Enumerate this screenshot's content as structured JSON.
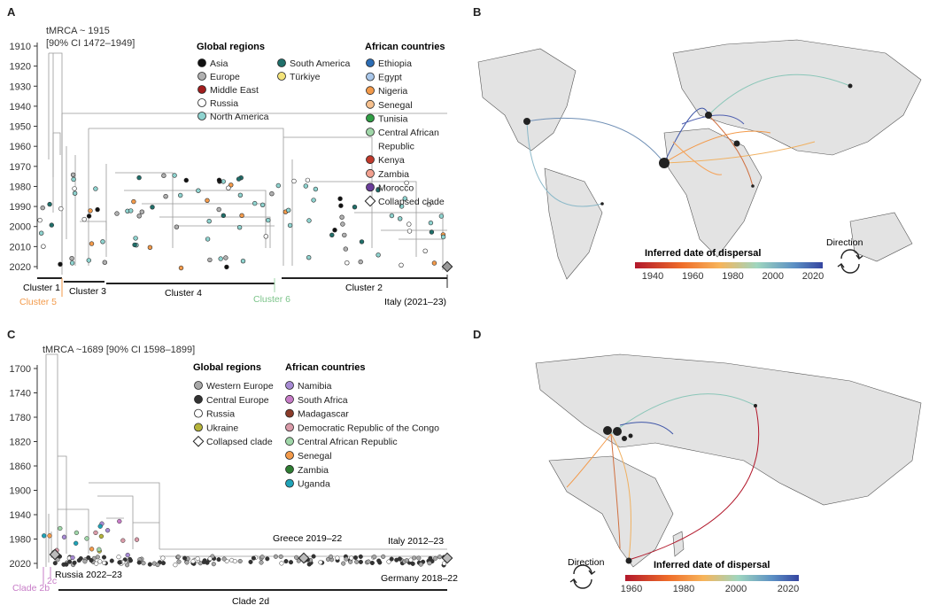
{
  "panels": {
    "a": {
      "letter": "A",
      "tmrca_line1": "tMRCA ~ 1915",
      "tmrca_line2": "[90% CI 1472–1949]",
      "years": [
        "1910",
        "1920",
        "1930",
        "1940",
        "1950",
        "1960",
        "1970",
        "1980",
        "1990",
        "2000",
        "2010",
        "2020"
      ],
      "legend_global_title": "Global regions",
      "legend_global": [
        {
          "label": "Asia",
          "color": "#111111"
        },
        {
          "label": "Europe",
          "color": "#b0b0b0"
        },
        {
          "label": "Middle East",
          "color": "#a11d1d"
        },
        {
          "label": "Russia",
          "color": "#ffffff"
        },
        {
          "label": "North America",
          "color": "#8ed3cf"
        },
        {
          "label": "South America",
          "color": "#1f6f6a"
        },
        {
          "label": "Türkiye",
          "color": "#f3e37a"
        }
      ],
      "legend_african_title": "African countries",
      "legend_african": [
        {
          "label": "Ethiopia",
          "color": "#2c6db4"
        },
        {
          "label": "Egypt",
          "color": "#a9c7ea"
        },
        {
          "label": "Nigeria",
          "color": "#f39a4a"
        },
        {
          "label": "Senegal",
          "color": "#f6c08e"
        },
        {
          "label": "Tunisia",
          "color": "#2f9e44"
        },
        {
          "label": "Central African",
          "color": "#9fd6a8"
        },
        {
          "label": "Republic",
          "color": "none"
        },
        {
          "label": "Kenya",
          "color": "#c0392b"
        },
        {
          "label": "Zambia",
          "color": "#f1a08f"
        },
        {
          "label": "Morocco",
          "color": "#6a3d9a"
        },
        {
          "label": "Collapsed clade",
          "color": "diamond"
        }
      ],
      "clusters": {
        "c1": "Cluster 1",
        "c3": "Cluster 3",
        "c4": "Cluster 4",
        "c2": "Cluster 2",
        "c5": "Cluster 5",
        "c6": "Cluster 6"
      },
      "italy": "Italy (2021–23)"
    },
    "b": {
      "letter": "B",
      "colorbar_title": "Inferred date of dispersal",
      "ticks": [
        "1940",
        "1960",
        "1980",
        "2000",
        "2020"
      ],
      "direction": "Direction"
    },
    "c": {
      "letter": "C",
      "tmrca": "tMRCA ~1689 [90% CI 1598–1899]",
      "years": [
        "1700",
        "1740",
        "1780",
        "1820",
        "1860",
        "1900",
        "1940",
        "1980",
        "2020"
      ],
      "legend_global_title": "Global regions",
      "legend_global": [
        {
          "label": "Western Europe",
          "color": "#a8a8a8"
        },
        {
          "label": "Central Europe",
          "color": "#333333"
        },
        {
          "label": "Russia",
          "color": "#ffffff"
        },
        {
          "label": "Ukraine",
          "color": "#b5b33a"
        },
        {
          "label": "Collapsed clade",
          "color": "diamond"
        }
      ],
      "legend_african_title": "African countries",
      "legend_african": [
        {
          "label": "Namibia",
          "color": "#a78bd4"
        },
        {
          "label": "South Africa",
          "color": "#c77cc7"
        },
        {
          "label": "Madagascar",
          "color": "#8a3b2a"
        },
        {
          "label": "Democratic Republic of the Congo",
          "color": "#d99aa8"
        },
        {
          "label": "Central African Republic",
          "color": "#9fd6a8"
        },
        {
          "label": "Senegal",
          "color": "#f39a4a"
        },
        {
          "label": "Zambia",
          "color": "#2e7d32"
        },
        {
          "label": "Uganda",
          "color": "#1fa3b8"
        }
      ],
      "greece": "Greece 2019–22",
      "italy": "Italy 2012–23",
      "russia": "Russia 2022–23",
      "germany": "Germany 2018–22",
      "clade2b": "Clade 2b",
      "clade2c": "2c",
      "clade2d": "Clade 2d"
    },
    "d": {
      "letter": "D",
      "colorbar_title": "Inferred date of dispersal",
      "ticks": [
        "1960",
        "1980",
        "2000",
        "2020"
      ],
      "direction": "Direction"
    }
  }
}
